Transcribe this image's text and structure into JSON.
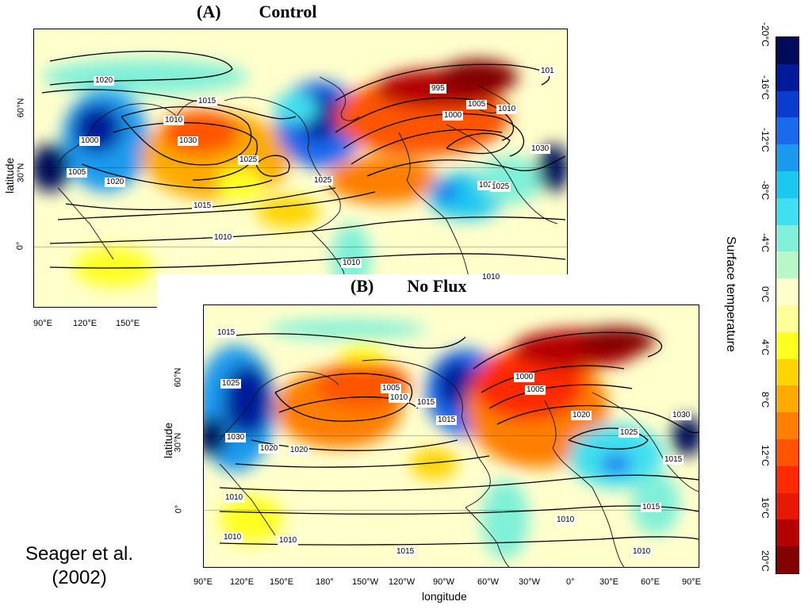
{
  "panels": [
    {
      "id": "A",
      "letter": "(A)",
      "title": "Control",
      "ylabel": "latitude",
      "yticks": [
        "60°N",
        "30°N",
        "0°"
      ],
      "xticks": [
        "90°E",
        "120°E",
        "150°E"
      ],
      "isobars": [
        "1020",
        "1015",
        "1010",
        "1000",
        "1005",
        "1025",
        "1030",
        "1020",
        "1025",
        "1020",
        "1015",
        "1010",
        "1010",
        "995",
        "1005",
        "1000",
        "1010",
        "1030",
        "1025",
        "1010",
        "101"
      ]
    },
    {
      "id": "B",
      "letter": "(B)",
      "title": "No Flux",
      "ylabel": "latitude",
      "yticks": [
        "60°N",
        "30°N",
        "0°"
      ],
      "xticks": [
        "90°E",
        "120°E",
        "150°E",
        "180°",
        "150°W",
        "120°W",
        "90°W",
        "60°W",
        "30°W",
        "0°",
        "30°E",
        "60°E",
        "90°E"
      ],
      "xlabel": "longitude",
      "isobars": [
        "1015",
        "1025",
        "1030",
        "1020",
        "1020",
        "1005",
        "1010",
        "1015",
        "1015",
        "1000",
        "1005",
        "1020",
        "1025",
        "1030",
        "1015",
        "1010",
        "1010",
        "1010",
        "1010",
        "1015",
        "1015",
        "1010"
      ]
    }
  ],
  "colorbar": {
    "title": "Surface temperature",
    "ticks": [
      "-20°C",
      "-16°C",
      "-12°C",
      "-8°C",
      "-4°C",
      "0°C",
      "4°C",
      "8°C",
      "12°C",
      "16°C",
      "20°C"
    ],
    "colors": [
      "#000a5a",
      "#001a9a",
      "#0a3cd0",
      "#1a6aee",
      "#1a9aee",
      "#1ac8f0",
      "#40e0f0",
      "#80f0d8",
      "#b8f8c8",
      "#ffffcc",
      "#ffff99",
      "#ffff20",
      "#ffd400",
      "#ffaa00",
      "#ff7f00",
      "#ff5500",
      "#ff2a00",
      "#e61a00",
      "#b40000",
      "#820000"
    ]
  },
  "citation": {
    "line1": "Seager et al.",
    "line2": "(2002)"
  }
}
